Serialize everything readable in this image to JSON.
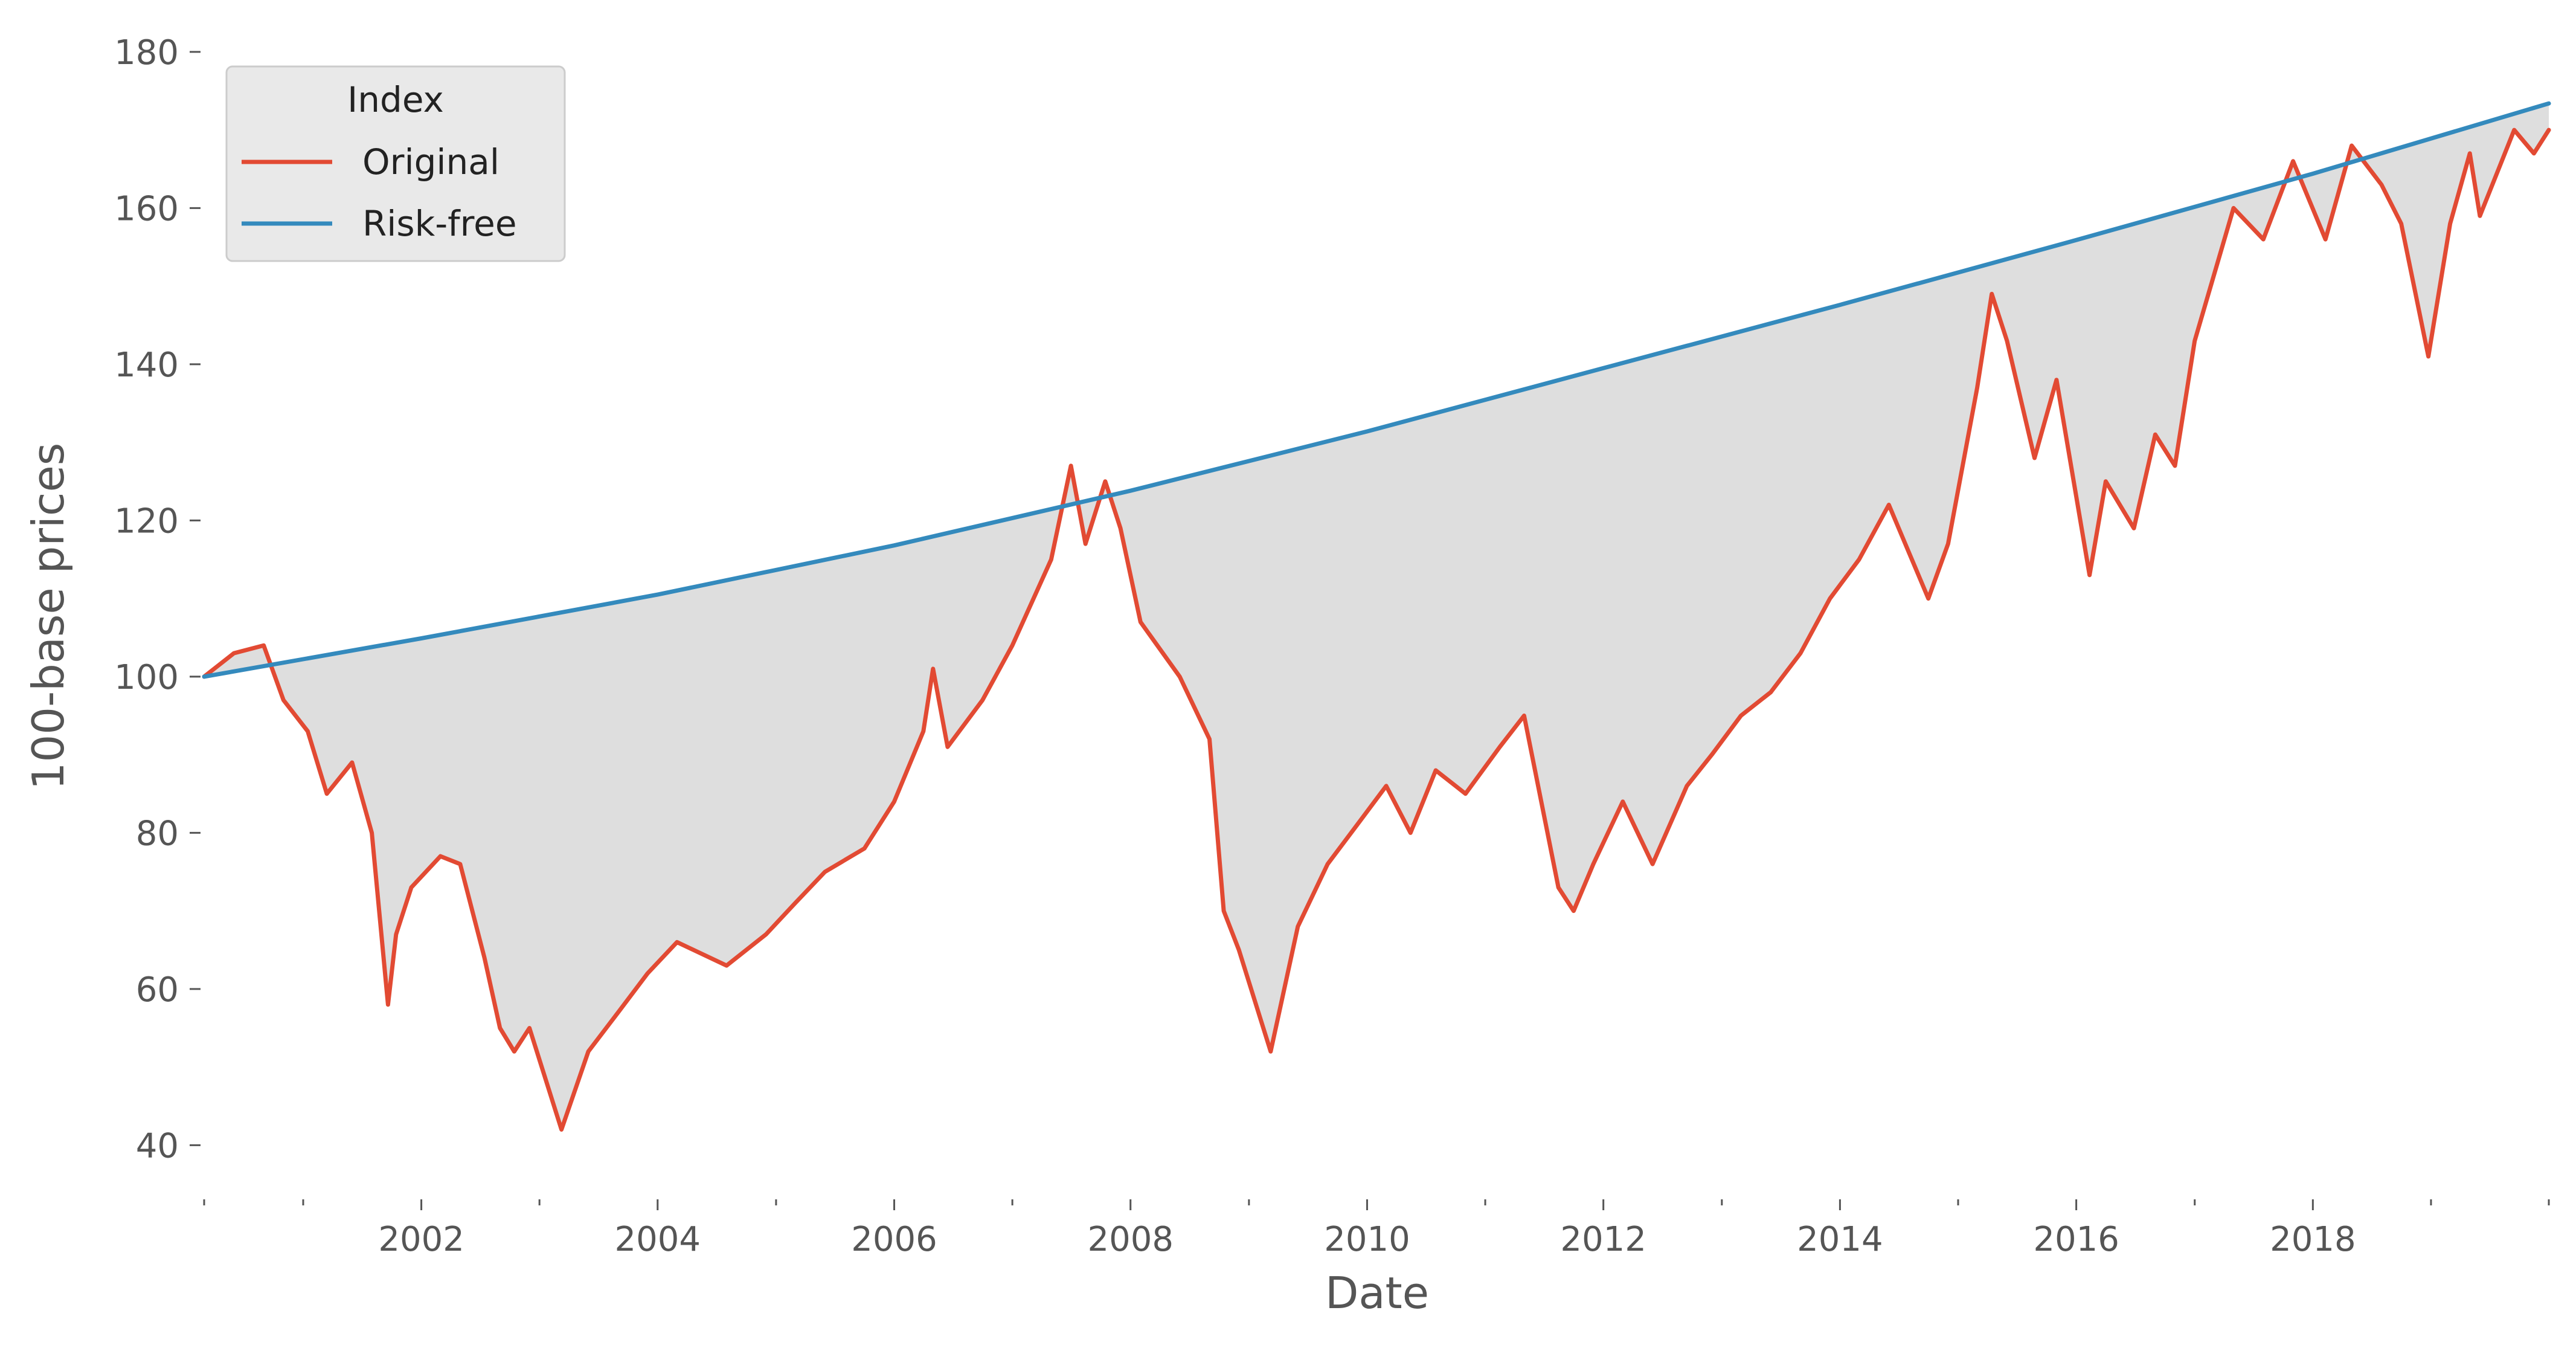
{
  "chart_data": {
    "type": "line",
    "xlabel": "Date",
    "ylabel": "100-base prices",
    "xlim": [
      "2000-03-01",
      "2019-12-31"
    ],
    "ylim": [
      35,
      182
    ],
    "y_ticks": [
      40,
      60,
      80,
      100,
      120,
      140,
      160,
      180
    ],
    "x_ticks": [
      "2002",
      "2004",
      "2006",
      "2008",
      "2010",
      "2012",
      "2014",
      "2016",
      "2018"
    ],
    "grid": false,
    "legend": {
      "title": "Index",
      "placement": "top-left"
    },
    "fill_between": {
      "upper": "Risk-free",
      "lower": "Original",
      "color": "#dedede"
    },
    "series": [
      {
        "name": "Original",
        "color": "#e24a33",
        "points": [
          [
            "2000-03-01",
            100
          ],
          [
            "2000-06-01",
            103
          ],
          [
            "2000-09-01",
            104
          ],
          [
            "2000-11-01",
            97
          ],
          [
            "2001-01-15",
            93
          ],
          [
            "2001-03-15",
            85
          ],
          [
            "2001-06-01",
            89
          ],
          [
            "2001-08-01",
            80
          ],
          [
            "2001-09-20",
            58
          ],
          [
            "2001-10-15",
            67
          ],
          [
            "2001-12-01",
            73
          ],
          [
            "2002-03-01",
            77
          ],
          [
            "2002-05-01",
            76
          ],
          [
            "2002-07-15",
            64
          ],
          [
            "2002-09-01",
            55
          ],
          [
            "2002-10-15",
            52
          ],
          [
            "2002-12-01",
            55
          ],
          [
            "2003-03-10",
            42
          ],
          [
            "2003-06-01",
            52
          ],
          [
            "2003-09-01",
            57
          ],
          [
            "2003-12-01",
            62
          ],
          [
            "2004-03-01",
            66
          ],
          [
            "2004-08-01",
            63
          ],
          [
            "2004-12-01",
            67
          ],
          [
            "2005-03-01",
            71
          ],
          [
            "2005-06-01",
            75
          ],
          [
            "2005-10-01",
            78
          ],
          [
            "2006-01-01",
            84
          ],
          [
            "2006-04-01",
            93
          ],
          [
            "2006-05-01",
            101
          ],
          [
            "2006-06-15",
            91
          ],
          [
            "2006-10-01",
            97
          ],
          [
            "2007-01-01",
            104
          ],
          [
            "2007-05-01",
            115
          ],
          [
            "2007-07-01",
            127
          ],
          [
            "2007-08-15",
            117
          ],
          [
            "2007-10-15",
            125
          ],
          [
            "2007-12-01",
            119
          ],
          [
            "2008-02-01",
            107
          ],
          [
            "2008-06-01",
            100
          ],
          [
            "2008-09-01",
            92
          ],
          [
            "2008-10-15",
            70
          ],
          [
            "2008-12-01",
            65
          ],
          [
            "2009-03-09",
            52
          ],
          [
            "2009-06-01",
            68
          ],
          [
            "2009-09-01",
            76
          ],
          [
            "2009-12-01",
            81
          ],
          [
            "2010-03-01",
            86
          ],
          [
            "2010-05-15",
            80
          ],
          [
            "2010-08-01",
            88
          ],
          [
            "2010-11-01",
            85
          ],
          [
            "2011-02-15",
            91
          ],
          [
            "2011-05-01",
            95
          ],
          [
            "2011-08-15",
            73
          ],
          [
            "2011-10-01",
            70
          ],
          [
            "2011-12-01",
            76
          ],
          [
            "2012-03-01",
            84
          ],
          [
            "2012-06-01",
            76
          ],
          [
            "2012-09-15",
            86
          ],
          [
            "2012-12-01",
            90
          ],
          [
            "2013-03-01",
            95
          ],
          [
            "2013-06-01",
            98
          ],
          [
            "2013-09-01",
            103
          ],
          [
            "2013-12-01",
            110
          ],
          [
            "2014-03-01",
            115
          ],
          [
            "2014-06-01",
            122
          ],
          [
            "2014-08-01",
            116
          ],
          [
            "2014-10-01",
            110
          ],
          [
            "2014-12-01",
            117
          ],
          [
            "2015-03-01",
            137
          ],
          [
            "2015-04-15",
            149
          ],
          [
            "2015-06-01",
            143
          ],
          [
            "2015-08-25",
            128
          ],
          [
            "2015-11-01",
            138
          ],
          [
            "2016-02-11",
            113
          ],
          [
            "2016-04-01",
            125
          ],
          [
            "2016-06-27",
            119
          ],
          [
            "2016-09-01",
            131
          ],
          [
            "2016-11-01",
            127
          ],
          [
            "2017-01-01",
            143
          ],
          [
            "2017-05-01",
            160
          ],
          [
            "2017-08-01",
            156
          ],
          [
            "2017-11-01",
            166
          ],
          [
            "2018-02-09",
            156
          ],
          [
            "2018-05-01",
            168
          ],
          [
            "2018-08-01",
            163
          ],
          [
            "2018-10-01",
            158
          ],
          [
            "2018-12-24",
            141
          ],
          [
            "2019-03-01",
            158
          ],
          [
            "2019-05-01",
            167
          ],
          [
            "2019-06-01",
            159
          ],
          [
            "2019-09-15",
            170
          ],
          [
            "2019-11-15",
            167
          ],
          [
            "2019-12-31",
            170
          ]
        ]
      },
      {
        "name": "Risk-free",
        "color": "#348abd",
        "points": [
          [
            "2000-03-01",
            100
          ],
          [
            "2002-01-01",
            104.9
          ],
          [
            "2004-01-01",
            110.5
          ],
          [
            "2006-01-01",
            116.8
          ],
          [
            "2008-01-01",
            123.8
          ],
          [
            "2010-01-01",
            131.4
          ],
          [
            "2012-01-01",
            139.5
          ],
          [
            "2014-01-01",
            147.6
          ],
          [
            "2016-01-01",
            155.9
          ],
          [
            "2018-01-01",
            164.4
          ],
          [
            "2019-12-31",
            173.4
          ]
        ]
      }
    ]
  }
}
